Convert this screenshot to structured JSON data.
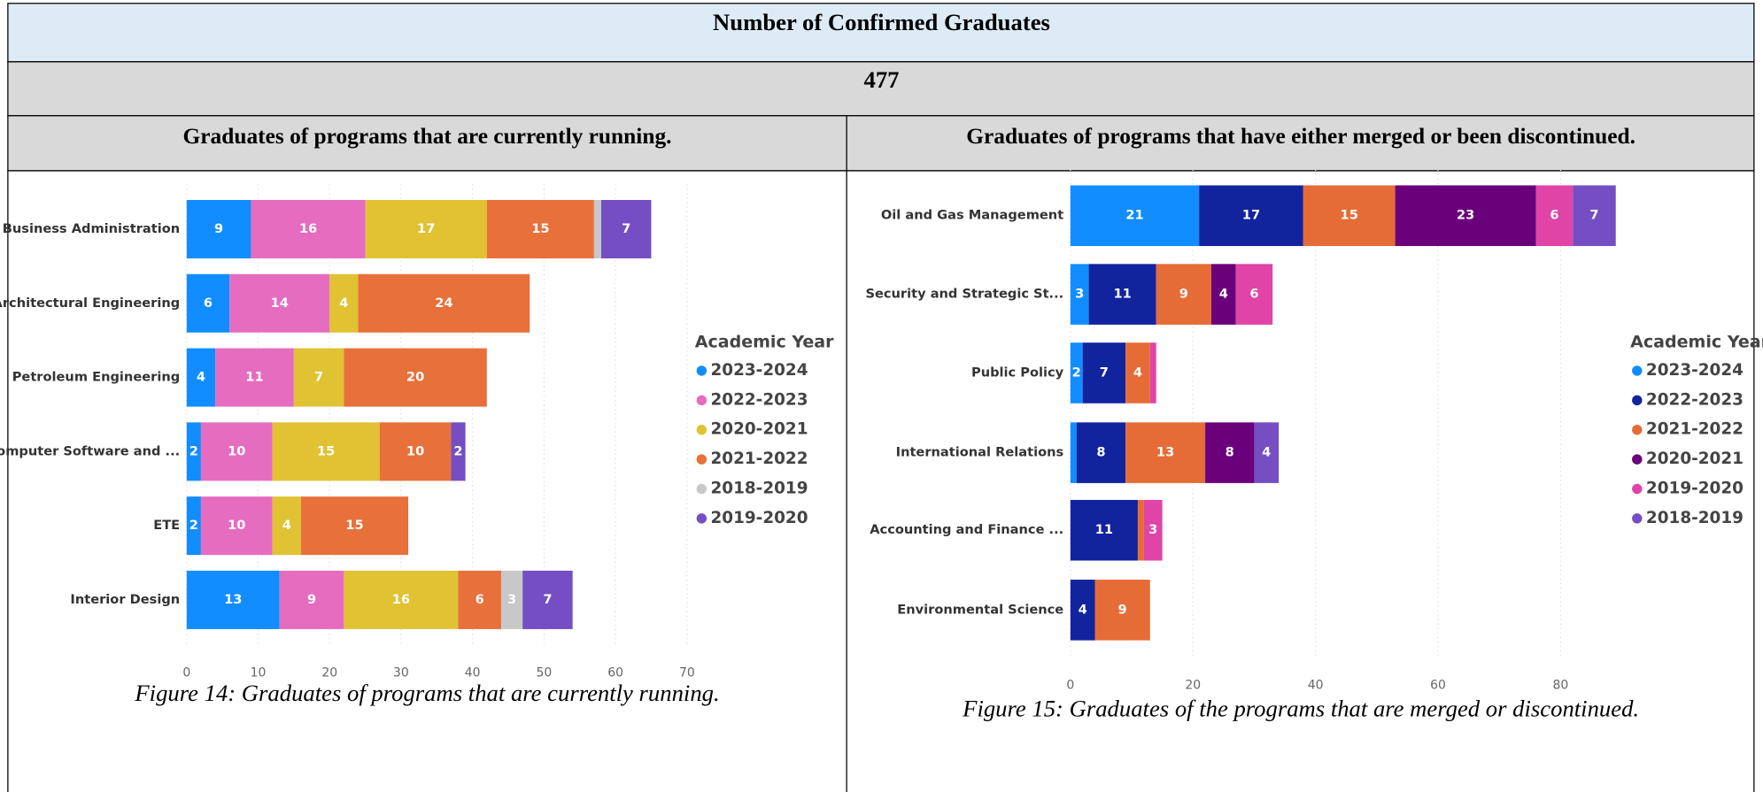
{
  "document": {
    "title": "Number of Confirmed Graduates",
    "total": 477,
    "panels": [
      {
        "heading": "Graduates of programs that are currently running.",
        "caption": "Figure 14: Graduates of programs that are currently running."
      },
      {
        "heading": "Graduates of programs that have either merged or been discontinued.",
        "caption": "Figure 15: Graduates of the programs that are merged or discontinued."
      }
    ]
  },
  "chart_data": [
    {
      "type": "bar",
      "orientation": "horizontal",
      "stacked": true,
      "categories": [
        "Business Administration",
        "Architectural Engineering",
        "Petroleum Engineering",
        "Computer Software and ...",
        "ETE",
        "Interior Design"
      ],
      "series": [
        {
          "name": "2023-2024",
          "color": "#118DFF",
          "values": [
            9,
            6,
            4,
            2,
            2,
            13
          ]
        },
        {
          "name": "2022-2023",
          "color": "#E66CC0",
          "values": [
            16,
            14,
            11,
            10,
            10,
            9
          ]
        },
        {
          "name": "2020-2021",
          "color": "#E1C233",
          "values": [
            17,
            4,
            7,
            15,
            4,
            16
          ]
        },
        {
          "name": "2021-2022",
          "color": "#E8703B",
          "values": [
            15,
            24,
            20,
            10,
            15,
            6
          ]
        },
        {
          "name": "2018-2019",
          "color": "#C8C8C8",
          "values": [
            1,
            null,
            null,
            null,
            null,
            3
          ]
        },
        {
          "name": "2019-2020",
          "color": "#744EC2",
          "values": [
            7,
            null,
            null,
            2,
            null,
            7
          ]
        }
      ],
      "xlim": [
        0,
        70
      ],
      "xticks": [
        0,
        10,
        20,
        30,
        40,
        50,
        60,
        70
      ],
      "grid": true,
      "legend_title": "Academic Year",
      "legend": "right"
    },
    {
      "type": "bar",
      "orientation": "horizontal",
      "stacked": true,
      "categories": [
        "Oil and Gas Management",
        "Security and Strategic St...",
        "Public Policy",
        "International Relations",
        "Accounting and Finance ...",
        "Environmental Science"
      ],
      "series": [
        {
          "name": "2023-2024",
          "color": "#118DFF",
          "values": [
            21,
            3,
            2,
            1,
            null,
            null
          ]
        },
        {
          "name": "2022-2023",
          "color": "#12239E",
          "values": [
            17,
            11,
            7,
            8,
            11,
            4
          ]
        },
        {
          "name": "2021-2022",
          "color": "#E66C37",
          "values": [
            15,
            9,
            4,
            13,
            1,
            9
          ]
        },
        {
          "name": "2020-2021",
          "color": "#6B007B",
          "values": [
            23,
            4,
            null,
            8,
            null,
            null
          ]
        },
        {
          "name": "2019-2020",
          "color": "#E044A7",
          "values": [
            6,
            6,
            1,
            null,
            3,
            null
          ]
        },
        {
          "name": "2018-2019",
          "color": "#744EC2",
          "values": [
            7,
            null,
            null,
            4,
            null,
            null
          ]
        }
      ],
      "xlim": [
        0,
        90
      ],
      "xticks": [
        0,
        20,
        40,
        60,
        80
      ],
      "grid": true,
      "legend_title": "Academic Year",
      "legend": "right"
    }
  ]
}
